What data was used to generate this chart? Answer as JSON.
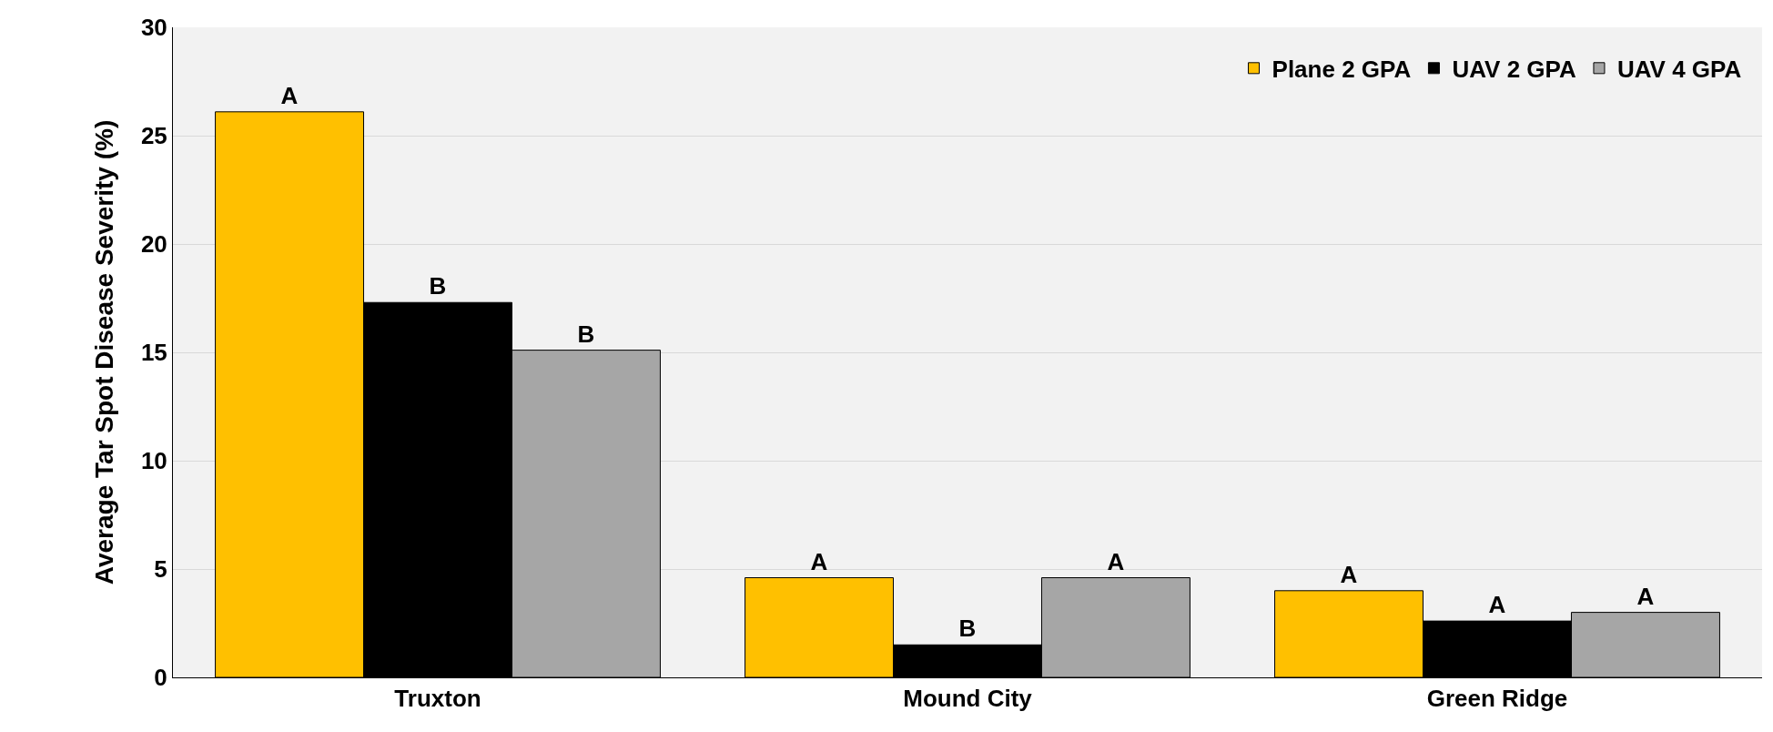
{
  "chart_data": {
    "type": "bar",
    "ylabel": "Average Tar Spot Disease Severity (%)",
    "categories": [
      "Truxton",
      "Mound City",
      "Green Ridge"
    ],
    "series": [
      {
        "name": "Plane 2 GPA",
        "color": "#ffc000",
        "values": [
          26.1,
          4.6,
          4.0
        ],
        "value_labels": [
          "A",
          "A",
          "A"
        ]
      },
      {
        "name": "UAV 2 GPA",
        "color": "#000000",
        "values": [
          17.3,
          1.5,
          2.6
        ],
        "value_labels": [
          "B",
          "B",
          "A"
        ]
      },
      {
        "name": "UAV 4 GPA",
        "color": "#a6a6a6",
        "values": [
          15.1,
          4.6,
          3.0
        ],
        "value_labels": [
          "B",
          "A",
          "A"
        ]
      }
    ],
    "ylim": [
      0,
      30
    ],
    "yticks": [
      0,
      5,
      10,
      15,
      20,
      25,
      30
    ],
    "grid": "y",
    "legend": "top right"
  }
}
